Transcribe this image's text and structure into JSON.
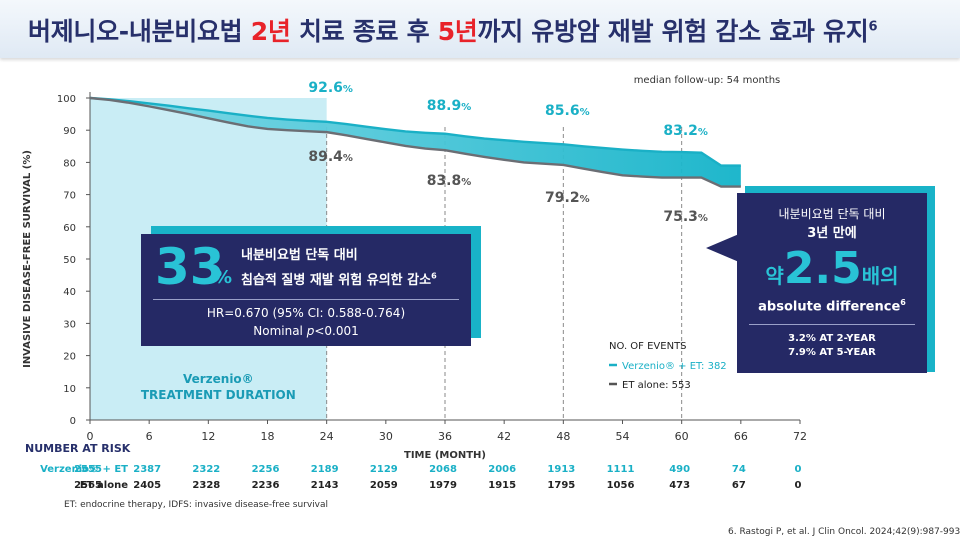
{
  "title": {
    "prefix": "버제니오-내분비요법 ",
    "red1": "2년",
    "mid": " 치료 종료 후 ",
    "red2": "5년",
    "suffix": "까지 유방암 재발 위험 감소 효과 유지",
    "ref": "6"
  },
  "chart_data": {
    "type": "line",
    "xlabel": "TIME (MONTH)",
    "ylabel": "INVASIVE DISEASE-FREE SURVIVAL (%)",
    "xlim": [
      0,
      72
    ],
    "ylim": [
      0,
      100
    ],
    "xticks": [
      0,
      6,
      12,
      18,
      24,
      30,
      36,
      42,
      48,
      54,
      60,
      66,
      72
    ],
    "yticks": [
      0,
      10,
      20,
      30,
      40,
      50,
      60,
      70,
      80,
      90,
      100
    ],
    "shaded_region": {
      "x_range": [
        0,
        24
      ],
      "label_line1": "Verzenio®",
      "label_line2": "TREATMENT DURATION"
    },
    "dashed_lines_x": [
      24,
      36,
      48,
      60
    ],
    "note": "median follow-up: 54 months",
    "series": [
      {
        "name": "Verzenio® + ET",
        "color": "#1ab0c6",
        "x": [
          0,
          2,
          4,
          6,
          8,
          10,
          12,
          14,
          16,
          18,
          20,
          22,
          24,
          26,
          28,
          30,
          32,
          34,
          36,
          38,
          40,
          42,
          44,
          46,
          48,
          50,
          52,
          54,
          56,
          58,
          60,
          62,
          64,
          66
        ],
        "y": [
          100,
          99.6,
          99.0,
          98.3,
          97.6,
          96.8,
          96.1,
          95.3,
          94.5,
          93.8,
          93.3,
          92.9,
          92.6,
          91.9,
          91.1,
          90.3,
          89.6,
          89.2,
          88.9,
          88.1,
          87.4,
          86.9,
          86.4,
          86.0,
          85.6,
          85.0,
          84.5,
          84.0,
          83.6,
          83.3,
          83.2,
          83.0,
          79.0,
          79.0
        ]
      },
      {
        "name": "ET alone",
        "color": "#6b6e74",
        "x": [
          0,
          2,
          4,
          6,
          8,
          10,
          12,
          14,
          16,
          18,
          20,
          22,
          24,
          26,
          28,
          30,
          32,
          34,
          36,
          38,
          40,
          42,
          44,
          46,
          48,
          50,
          52,
          54,
          56,
          58,
          60,
          62,
          64,
          66
        ],
        "y": [
          100,
          99.4,
          98.5,
          97.4,
          96.2,
          95.0,
          93.7,
          92.4,
          91.2,
          90.4,
          90.0,
          89.7,
          89.4,
          88.4,
          87.3,
          86.2,
          85.1,
          84.3,
          83.8,
          82.7,
          81.7,
          80.8,
          80.0,
          79.6,
          79.2,
          78.1,
          77.0,
          76.0,
          75.6,
          75.3,
          75.3,
          75.3,
          72.5,
          72.5
        ]
      }
    ],
    "annotations_top": [
      {
        "x": 24,
        "value": "92.6",
        "unit": "%"
      },
      {
        "x": 36,
        "value": "88.9",
        "unit": "%"
      },
      {
        "x": 48,
        "value": "85.6",
        "unit": "%"
      },
      {
        "x": 60,
        "value": "83.2",
        "unit": "%"
      }
    ],
    "annotations_bottom": [
      {
        "x": 24,
        "value": "89.4",
        "unit": "%"
      },
      {
        "x": 36,
        "value": "83.8",
        "unit": "%"
      },
      {
        "x": 48,
        "value": "79.2",
        "unit": "%"
      },
      {
        "x": 60,
        "value": "75.3",
        "unit": "%"
      }
    ],
    "events_legend": {
      "title": "NO. OF EVENTS",
      "items": [
        {
          "label": "Verzenio® + ET: 382",
          "color": "#1ab0c6"
        },
        {
          "label": "ET alone: 553",
          "color": "#555555"
        }
      ]
    },
    "risk_table": {
      "title": "NUMBER AT RISK",
      "rows": [
        {
          "label": "Verzenio® + ET",
          "color": "#1ab0c6",
          "values": [
            "2555",
            "2387",
            "2322",
            "2256",
            "2189",
            "2129",
            "2068",
            "2006",
            "1913",
            "1111",
            "490",
            "74",
            "0"
          ]
        },
        {
          "label": "ET alone",
          "color": "#222222",
          "values": [
            "2565",
            "2405",
            "2328",
            "2236",
            "2143",
            "2059",
            "1979",
            "1915",
            "1795",
            "1056",
            "473",
            "67",
            "0"
          ]
        }
      ]
    }
  },
  "box_main": {
    "big": "33",
    "pct": "%",
    "line1": "내분비요법 단독 대비",
    "line2": "침습적 질병 재발 위험 유의한 감소",
    "line2_ref": "6",
    "hr": "HR=0.670 (95% CI: 0.588-0.764)",
    "nominal_prefix": "Nominal ",
    "nominal_p": "p",
    "nominal_suffix": "<0.001"
  },
  "callout": {
    "line1": "내분비요법 단독 대비",
    "line2": "3년 만에",
    "big_prefix": "약",
    "big_value": "2.5",
    "big_suffix": "배의",
    "line4": "absolute difference",
    "line4_ref": "6",
    "line5": "3.2% AT 2-YEAR",
    "line6": "7.9% AT 5-YEAR"
  },
  "footnote": "ET: endocrine therapy, IDFS: invasive disease-free survival",
  "reference": "6. Rastogi P, et al. J Clin Oncol. 2024;42(9):987-993."
}
